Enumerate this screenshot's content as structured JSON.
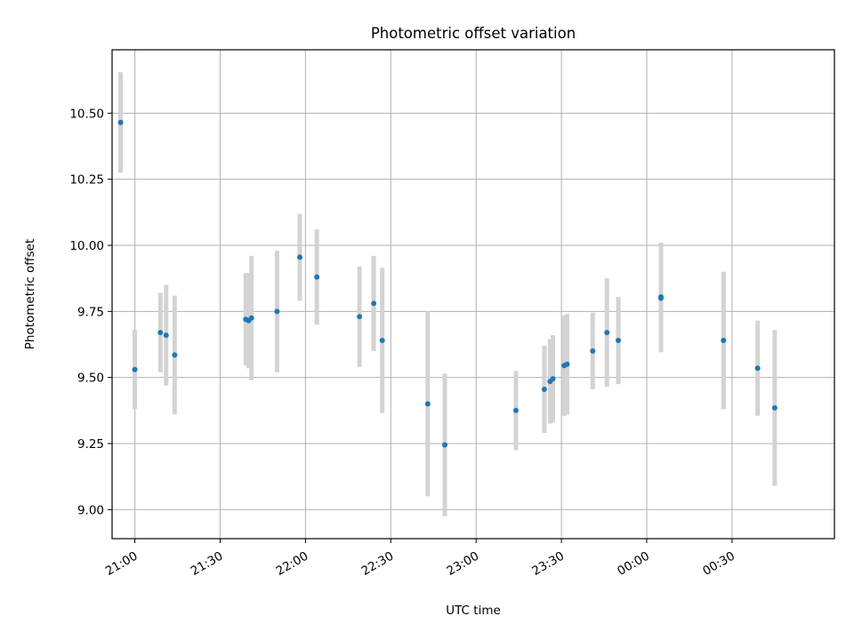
{
  "chart_data": {
    "type": "scatter",
    "title": "Photometric offset variation",
    "xlabel": "UTC time",
    "ylabel": "Photometric offset",
    "x_unit": "UTC time (HH:MM)",
    "xlim": [
      "20:52",
      "01:06"
    ],
    "ylim": [
      8.89,
      10.74
    ],
    "grid": true,
    "x_ticks": [
      "21:00",
      "21:30",
      "22:00",
      "22:30",
      "23:00",
      "23:30",
      "00:00",
      "00:30"
    ],
    "y_ticks": [
      9.0,
      9.25,
      9.5,
      9.75,
      10.0,
      10.25,
      10.5
    ],
    "y_tick_labels": [
      "9.00",
      "9.25",
      "9.50",
      "9.75",
      "10.00",
      "10.25",
      "10.50"
    ],
    "colors": {
      "point": "#1f77b4",
      "errorbar": "#d3d3d3",
      "grid": "#b0b0b0"
    },
    "series": [
      {
        "points": [
          {
            "x": "20:55",
            "y": 10.465,
            "yerr": 0.19
          },
          {
            "x": "21:00",
            "y": 9.53,
            "yerr": 0.15
          },
          {
            "x": "21:09",
            "y": 9.67,
            "yerr": 0.15
          },
          {
            "x": "21:11",
            "y": 9.66,
            "yerr": 0.19
          },
          {
            "x": "21:14",
            "y": 9.585,
            "yerr": 0.225
          },
          {
            "x": "21:39",
            "y": 9.72,
            "yerr": 0.175
          },
          {
            "x": "21:40",
            "y": 9.715,
            "yerr": 0.18
          },
          {
            "x": "21:41",
            "y": 9.725,
            "yerr": 0.235
          },
          {
            "x": "21:50",
            "y": 9.75,
            "yerr": 0.23
          },
          {
            "x": "21:58",
            "y": 9.955,
            "yerr": 0.165
          },
          {
            "x": "22:04",
            "y": 9.88,
            "yerr": 0.18
          },
          {
            "x": "22:19",
            "y": 9.73,
            "yerr": 0.19
          },
          {
            "x": "22:24",
            "y": 9.78,
            "yerr": 0.18
          },
          {
            "x": "22:27",
            "y": 9.64,
            "yerr": 0.275
          },
          {
            "x": "22:43",
            "y": 9.4,
            "yerr": 0.35
          },
          {
            "x": "22:49",
            "y": 9.245,
            "yerr": 0.27
          },
          {
            "x": "23:14",
            "y": 9.375,
            "yerr": 0.15
          },
          {
            "x": "23:24",
            "y": 9.455,
            "yerr": 0.165
          },
          {
            "x": "23:26",
            "y": 9.485,
            "yerr": 0.16
          },
          {
            "x": "23:27",
            "y": 9.495,
            "yerr": 0.165
          },
          {
            "x": "23:31",
            "y": 9.545,
            "yerr": 0.19
          },
          {
            "x": "23:32",
            "y": 9.55,
            "yerr": 0.19
          },
          {
            "x": "23:41",
            "y": 9.6,
            "yerr": 0.145
          },
          {
            "x": "23:46",
            "y": 9.67,
            "yerr": 0.205
          },
          {
            "x": "23:50",
            "y": 9.64,
            "yerr": 0.165
          },
          {
            "x": "00:05",
            "y": 9.805,
            "yerr": 0.205
          },
          {
            "x": "00:05",
            "y": 9.8,
            "yerr": 0.205
          },
          {
            "x": "00:27",
            "y": 9.64,
            "yerr": 0.26
          },
          {
            "x": "00:39",
            "y": 9.535,
            "yerr": 0.18
          },
          {
            "x": "00:45",
            "y": 9.385,
            "yerr": 0.295
          }
        ]
      }
    ]
  }
}
